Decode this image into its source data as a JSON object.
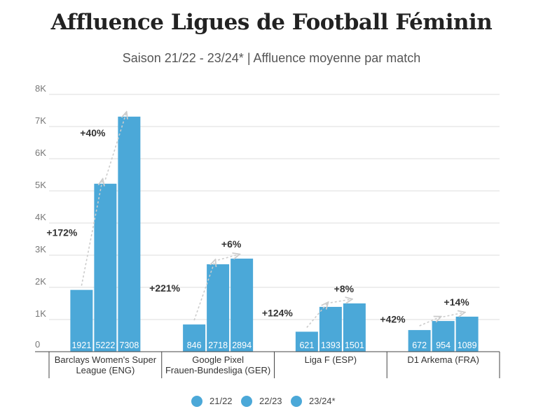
{
  "chart_data": {
    "type": "bar",
    "title": "Affluence Ligues de Football Féminin",
    "subtitle": "Saison 21/22 - 23/24* | Affluence moyenne par match",
    "categories": [
      [
        "Barclays Women's Super",
        "League (ENG)"
      ],
      [
        "Google Pixel",
        "Frauen-Bundesliga (GER)"
      ],
      [
        "Liga F (ESP)"
      ],
      [
        "D1 Arkema (FRA)"
      ]
    ],
    "series": [
      {
        "name": "21/22",
        "values": [
          1921,
          846,
          621,
          672
        ],
        "labels": [
          "1921",
          "846",
          "621",
          "672"
        ]
      },
      {
        "name": "22/23",
        "values": [
          5222,
          2718,
          1393,
          954
        ],
        "labels": [
          "5222",
          "2718",
          "1393",
          "954"
        ]
      },
      {
        "name": "23/24*",
        "values": [
          7308,
          2894,
          1501,
          1089
        ],
        "labels": [
          "7308",
          "2894",
          "1501",
          "1089"
        ]
      }
    ],
    "growth_labels": [
      [
        "+172%",
        "+40%"
      ],
      [
        "+221%",
        "+6%"
      ],
      [
        "+124%",
        "+8%"
      ],
      [
        "+42%",
        "+14%"
      ]
    ],
    "ylim": [
      0,
      8000
    ],
    "yticks": [
      0,
      1000,
      2000,
      3000,
      4000,
      5000,
      6000,
      7000,
      8000
    ],
    "ytick_labels": [
      "0",
      "1K",
      "2K",
      "3K",
      "4K",
      "5K",
      "6K",
      "7K",
      "8K"
    ],
    "grid": true,
    "legend_position": "bottom-center",
    "colors": {
      "bar": "#4BA8D8",
      "grid": "#dddddd",
      "axis": "#444444",
      "arrow": "#cccccc"
    }
  }
}
